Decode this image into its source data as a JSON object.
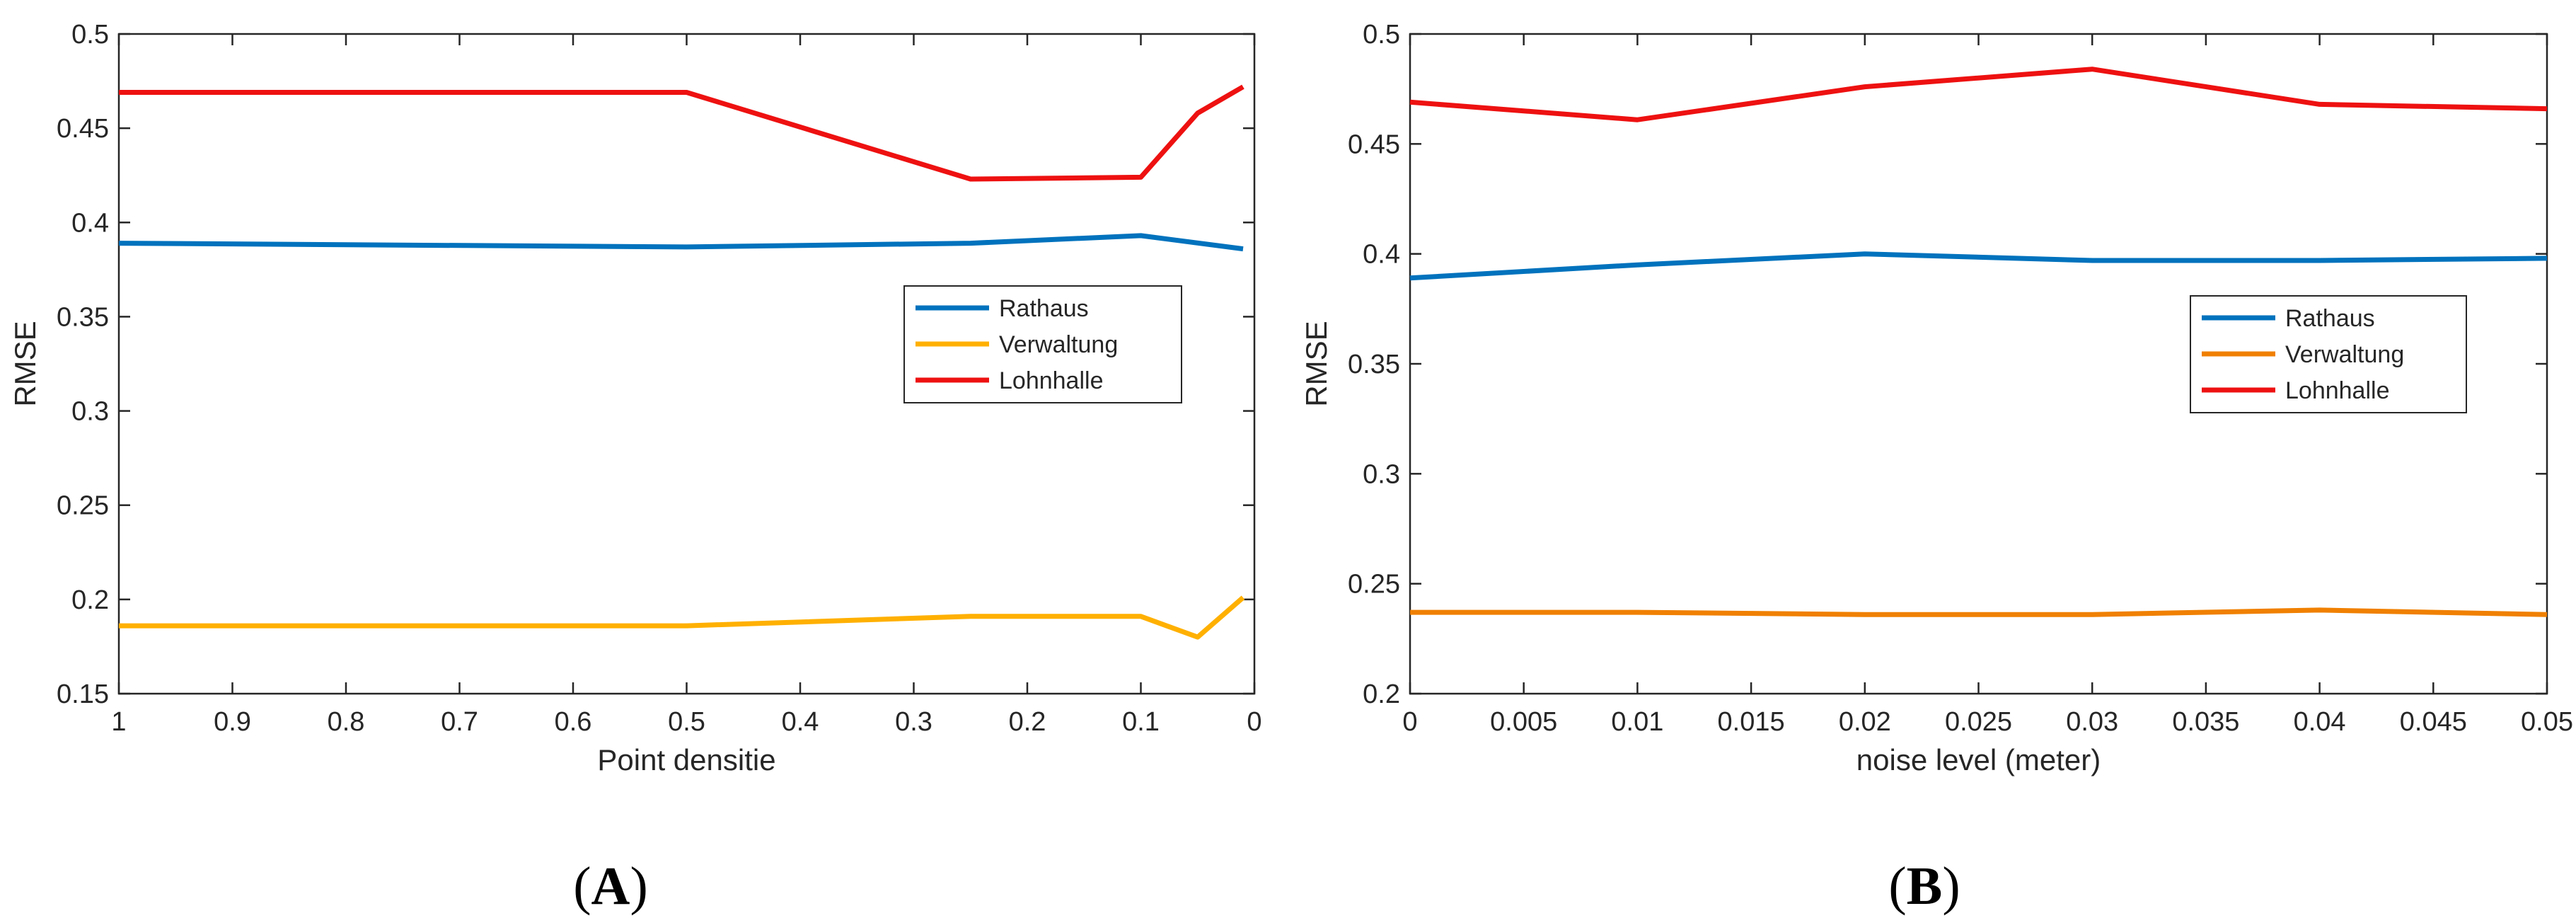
{
  "colors": {
    "rathaus": "#0072BD",
    "verwaltung_A": "#FFB000",
    "verwaltung_B": "#F08000",
    "lohnhalle": "#EE1111",
    "axis": "#262626",
    "grid_text": "#262626"
  },
  "chart_data": [
    {
      "type": "line",
      "panel": "A",
      "xlabel": "Point densitie",
      "ylabel": "RMSE",
      "xlim": [
        1,
        0
      ],
      "ylim": [
        0.15,
        0.5
      ],
      "x_reversed": true,
      "xticks": [
        "1",
        "0.9",
        "0.8",
        "0.7",
        "0.6",
        "0.5",
        "0.4",
        "0.3",
        "0.2",
        "0.1",
        "0"
      ],
      "yticks": [
        "0.15",
        "0.2",
        "0.25",
        "0.3",
        "0.35",
        "0.4",
        "0.45",
        "0.5"
      ],
      "legend_position": "center-right",
      "series": [
        {
          "name": "Rathaus",
          "color_key": "rathaus",
          "x": [
            1,
            0.5,
            0.25,
            0.1,
            0.01
          ],
          "y": [
            0.389,
            0.387,
            0.389,
            0.393,
            0.386
          ]
        },
        {
          "name": "Verwaltung",
          "color_key": "verwaltung_A",
          "x": [
            1,
            0.5,
            0.25,
            0.1,
            0.05,
            0.01
          ],
          "y": [
            0.186,
            0.186,
            0.191,
            0.191,
            0.18,
            0.201
          ]
        },
        {
          "name": "Lohnhalle",
          "color_key": "lohnhalle",
          "x": [
            1,
            0.5,
            0.25,
            0.1,
            0.05,
            0.01
          ],
          "y": [
            0.469,
            0.469,
            0.423,
            0.424,
            0.458,
            0.472
          ]
        }
      ]
    },
    {
      "type": "line",
      "panel": "B",
      "xlabel": "noise level (meter)",
      "ylabel": "RMSE",
      "xlim": [
        0,
        0.05
      ],
      "ylim": [
        0.2,
        0.5
      ],
      "x_reversed": false,
      "xticks": [
        "0",
        "0.005",
        "0.01",
        "0.015",
        "0.02",
        "0.025",
        "0.03",
        "0.035",
        "0.04",
        "0.045",
        "0.05"
      ],
      "yticks": [
        "0.2",
        "0.25",
        "0.3",
        "0.35",
        "0.4",
        "0.45",
        "0.5"
      ],
      "legend_position": "center-right",
      "series": [
        {
          "name": "Rathaus",
          "color_key": "rathaus",
          "x": [
            0,
            0.01,
            0.02,
            0.03,
            0.04,
            0.05
          ],
          "y": [
            0.389,
            0.395,
            0.4,
            0.397,
            0.397,
            0.398
          ]
        },
        {
          "name": "Verwaltung",
          "color_key": "verwaltung_B",
          "x": [
            0,
            0.01,
            0.02,
            0.03,
            0.04,
            0.05
          ],
          "y": [
            0.237,
            0.237,
            0.236,
            0.236,
            0.238,
            0.236
          ]
        },
        {
          "name": "Lohnhalle",
          "color_key": "lohnhalle",
          "x": [
            0,
            0.01,
            0.02,
            0.03,
            0.04,
            0.05
          ],
          "y": [
            0.469,
            0.461,
            0.476,
            0.484,
            0.468,
            0.466
          ]
        }
      ]
    }
  ],
  "captions": {
    "a": {
      "open": "(",
      "letter": "A",
      "close": ")"
    },
    "b": {
      "open": "(",
      "letter": "B",
      "close": ")"
    }
  }
}
